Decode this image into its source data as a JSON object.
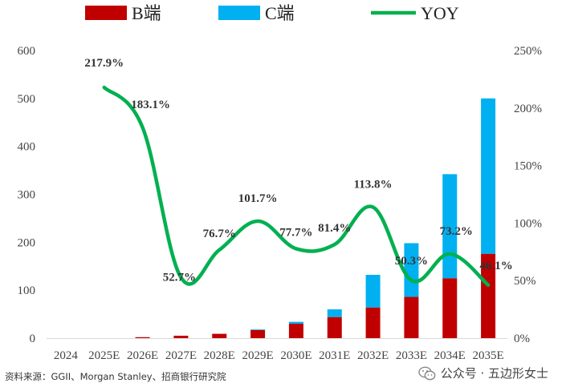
{
  "chart_data": {
    "type": "bar",
    "stacked": true,
    "categories": [
      "2024",
      "2025E",
      "2026E",
      "2027E",
      "2028E",
      "2029E",
      "2030E",
      "2031E",
      "2032E",
      "2033E",
      "2034E",
      "2035E"
    ],
    "series": [
      {
        "name": "B端",
        "color": "#C00000",
        "values": [
          0,
          0,
          2,
          5,
          9,
          17,
          30,
          44,
          64,
          86,
          125,
          176
        ]
      },
      {
        "name": "C端",
        "color": "#00B0F0",
        "values": [
          0,
          0,
          0,
          0,
          0,
          1,
          4,
          16,
          68,
          112,
          217,
          324
        ]
      }
    ],
    "line": {
      "name": "YOY",
      "color": "#00B050",
      "axis": "right",
      "values": [
        null,
        217.9,
        183.1,
        52.7,
        76.7,
        101.7,
        77.7,
        81.4,
        113.8,
        50.3,
        73.2,
        46.1
      ],
      "labels": [
        "",
        "217.9%",
        "183.1%",
        "52.7%",
        "76.7%",
        "101.7%",
        "77.7%",
        "81.4%",
        "113.8%",
        "50.3%",
        "73.2%",
        "46.1%"
      ]
    },
    "y_left": {
      "min": 0,
      "max": 600,
      "ticks": [
        "0",
        "100",
        "200",
        "300",
        "400",
        "500",
        "600"
      ]
    },
    "y_right": {
      "min": 0,
      "max": 250,
      "ticks": [
        "0%",
        "50%",
        "100%",
        "150%",
        "200%",
        "250%"
      ]
    },
    "legend_position": "top",
    "grid": false
  },
  "footer": {
    "source": "资料来源：GGII、Morgan Stanley、招商银行研究院",
    "brand": "公众号 · 五边形女士"
  }
}
